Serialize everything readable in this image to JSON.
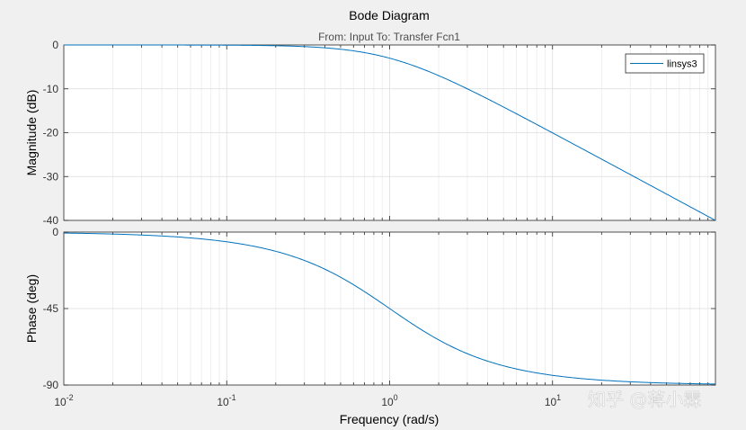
{
  "chart_data": {
    "type": "line",
    "title": "Bode Diagram",
    "subtitle": "From: Input  To: Transfer Fcn1",
    "xlabel": "Frequency  (rad/s)",
    "xscale": "log",
    "xlim": [
      0.01,
      100
    ],
    "xtick_exponents": [
      "-2",
      "-1",
      "0",
      "1"
    ],
    "xtick_base": "10",
    "legend": {
      "entries": [
        "linsys3"
      ],
      "location": "top-right"
    },
    "series_color": "#0072bd",
    "magnitude": {
      "ylabel": "Magnitude (dB)",
      "ylim": [
        -40,
        0
      ],
      "yticks": [
        0,
        -10,
        -20,
        -30,
        -40
      ],
      "ytick_labels": [
        "0",
        "-10",
        "-20",
        "-30",
        "-40"
      ],
      "series": [
        {
          "name": "linsys3",
          "transfer_function": "1/(s+1)",
          "quantity": "magnitude_dB"
        }
      ]
    },
    "phase": {
      "ylabel": "Phase (deg)",
      "ylim": [
        -90,
        0
      ],
      "yticks": [
        0,
        -45,
        -90
      ],
      "ytick_labels": [
        "0",
        "-45",
        "-90"
      ],
      "series": [
        {
          "name": "linsys3",
          "transfer_function": "1/(s+1)",
          "quantity": "phase_deg"
        }
      ]
    },
    "grid": true
  },
  "watermark": {
    "text": "知乎 @蒋小霖"
  }
}
